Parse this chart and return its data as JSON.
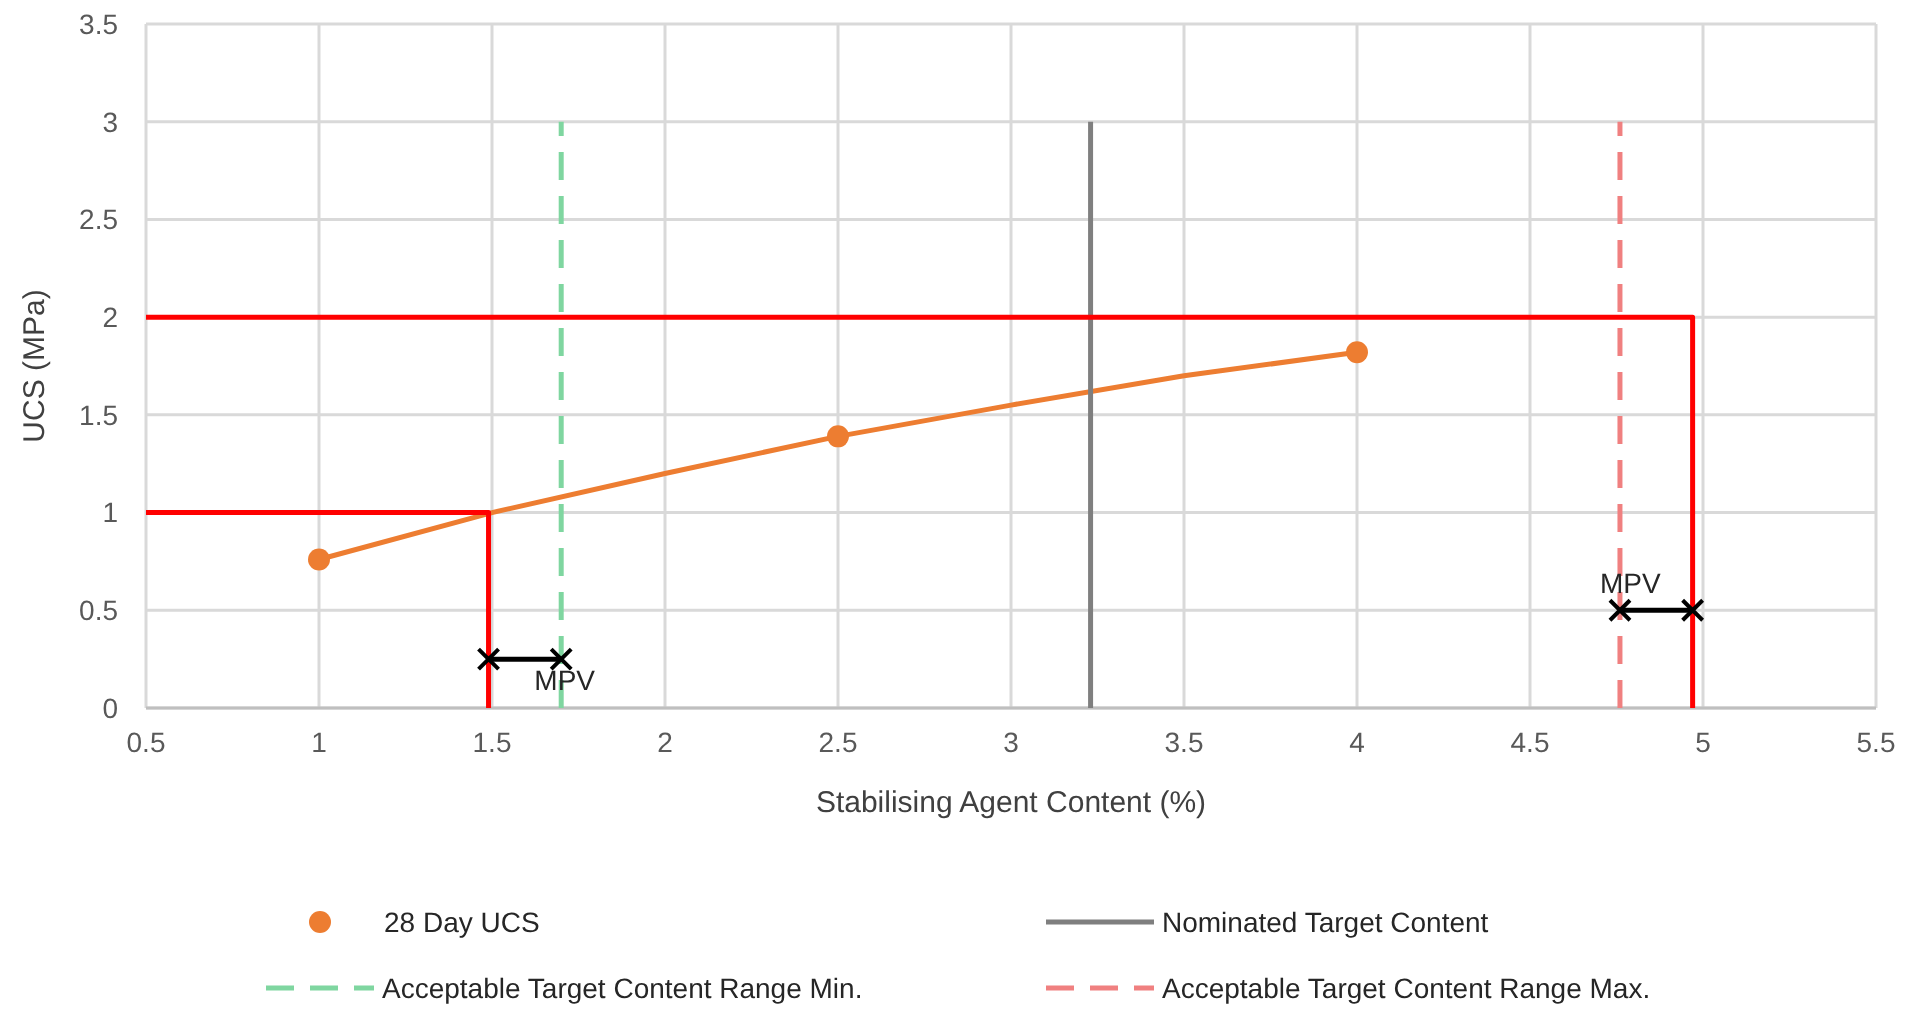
{
  "chart_data": {
    "type": "scatter",
    "xlabel": "Stabilising Agent Content (%)",
    "ylabel": "UCS (MPa)",
    "xlim": [
      0.5,
      5.5
    ],
    "xticks": [
      0.5,
      1,
      1.5,
      2,
      2.5,
      3,
      3.5,
      4,
      4.5,
      5,
      5.5
    ],
    "ylim": [
      0,
      3.5
    ],
    "yticks": [
      0,
      0.5,
      1,
      1.5,
      2,
      2.5,
      3,
      3.5
    ],
    "grid": true,
    "legend": "bottom",
    "series": [
      {
        "name": "28 Day UCS",
        "color": "#ed7d31",
        "marker": "circle",
        "x": [
          1,
          2.5,
          4
        ],
        "values": [
          0.76,
          1.39,
          1.82
        ]
      },
      {
        "type": "line",
        "color": "#ed7d31",
        "marker": "none",
        "x": [
          1,
          1.5,
          2,
          2.5,
          3,
          3.5,
          4
        ],
        "values": [
          0.76,
          1.0,
          1.2,
          1.39,
          1.55,
          1.7,
          1.82
        ]
      },
      {
        "name": "Nominated Target Content",
        "type": "line",
        "color": "#7f7f7f",
        "marker": "none",
        "line_style": "solid",
        "x": [
          3.23,
          3.23
        ],
        "values": [
          0,
          3
        ]
      },
      {
        "name": "Acceptable Target Content Range Min.",
        "type": "line",
        "color": "#7fd6a0",
        "marker": "none",
        "line_style": "dashed",
        "x": [
          1.7,
          1.7
        ],
        "values": [
          0,
          3
        ]
      },
      {
        "name": "Acceptable Target Content Range Max.",
        "type": "line",
        "color": "#f08080",
        "marker": "none",
        "line_style": "dashed",
        "x": [
          4.76,
          4.76
        ],
        "values": [
          0,
          3
        ]
      },
      {
        "type": "line",
        "color": "#ff0000",
        "marker": "none",
        "line_style": "solid",
        "x": [
          0.5,
          1.49,
          1.49
        ],
        "values": [
          1,
          1,
          0
        ]
      },
      {
        "type": "line",
        "color": "#ff0000",
        "marker": "none",
        "line_style": "solid",
        "x": [
          0.5,
          4.97,
          4.97
        ],
        "values": [
          2,
          2,
          0
        ]
      },
      {
        "type": "line",
        "color": "#000000",
        "marker": "cross",
        "line_style": "solid",
        "x": [
          1.49,
          1.7
        ],
        "values": [
          0.25,
          0.25
        ]
      },
      {
        "type": "line",
        "color": "#000000",
        "marker": "cross",
        "line_style": "solid",
        "x": [
          4.76,
          4.97
        ],
        "values": [
          0.5,
          0.5
        ]
      }
    ],
    "annotations": [
      {
        "text": "MPV",
        "x": 1.71,
        "y": 0.09
      },
      {
        "text": "MPV",
        "x": 4.79,
        "y": 0.59
      }
    ]
  }
}
